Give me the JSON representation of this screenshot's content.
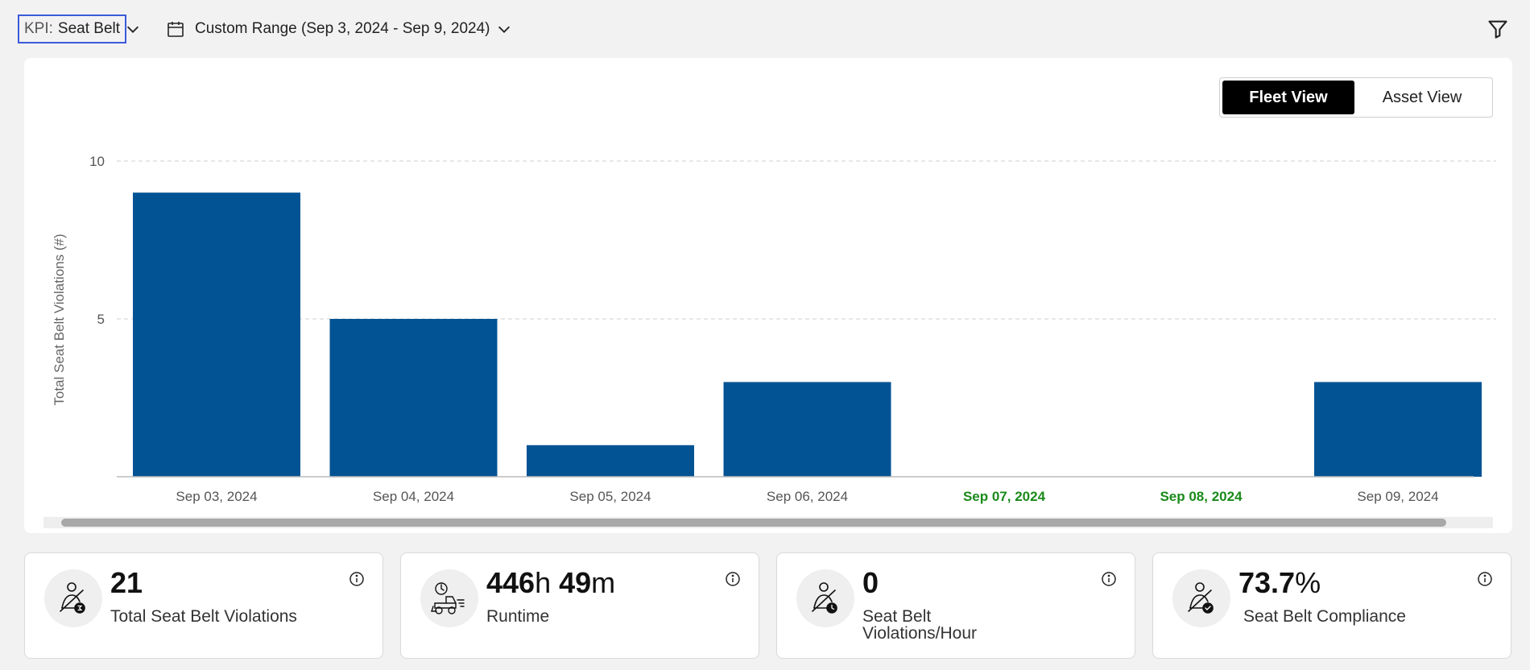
{
  "toolbar": {
    "kpi_prefix": "KPI:",
    "kpi_value": "Seat Belt",
    "date_range_label": "Custom Range (Sep 3, 2024 - Sep 9, 2024)"
  },
  "view_toggle": {
    "fleet_view_label": "Fleet View",
    "asset_view_label": "Asset View",
    "active": "Fleet View"
  },
  "chart_data": {
    "type": "bar",
    "ylabel": "Total Seat Belt Violations (#)",
    "xlabel": "",
    "categories": [
      "Sep 03, 2024",
      "Sep 04, 2024",
      "Sep 05, 2024",
      "Sep 06, 2024",
      "Sep 07, 2024",
      "Sep 08, 2024",
      "Sep 09, 2024"
    ],
    "highlighted_categories": [
      "Sep 07, 2024",
      "Sep 08, 2024"
    ],
    "values": [
      9,
      5,
      1,
      3,
      0,
      0,
      3
    ],
    "yticks": [
      5,
      10
    ],
    "ylim": [
      0,
      10
    ],
    "grid": true,
    "bar_color": "#025394",
    "highlight_label_color": "#1a8a1a"
  },
  "kpis": [
    {
      "value": "21",
      "unit": "",
      "label": "Total Seat Belt Violations",
      "icon": "seatbelt-total-icon"
    },
    {
      "value": "446",
      "unit": "h",
      "value2": "49",
      "unit2": "m",
      "label": "Runtime",
      "icon": "equipment-runtime-icon"
    },
    {
      "value": "0",
      "unit": "",
      "label": "Seat Belt Violations/Hour",
      "icon": "seatbelt-per-hour-icon"
    },
    {
      "value": "73.7",
      "unit": "%",
      "label": "Seat Belt Compliance",
      "icon": "seatbelt-compliance-icon"
    }
  ]
}
